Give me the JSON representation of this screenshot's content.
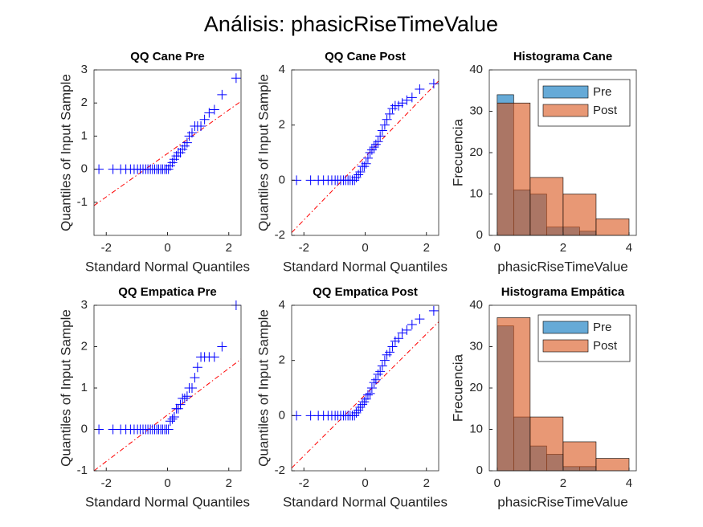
{
  "title": "Análisis: phasicRiseTimeValue",
  "chart_data": [
    {
      "type": "scatter",
      "title": "QQ Cane Pre",
      "x_label": "Standard Normal Quantiles",
      "y_label": "Quantiles of Input Sample",
      "x": [
        -2.24,
        -1.78,
        -1.53,
        -1.36,
        -1.21,
        -1.09,
        -0.98,
        -0.89,
        -0.8,
        -0.71,
        -0.64,
        -0.56,
        -0.49,
        -0.42,
        -0.35,
        -0.29,
        -0.22,
        -0.16,
        -0.09,
        -0.03,
        0.03,
        0.09,
        0.16,
        0.22,
        0.29,
        0.35,
        0.42,
        0.49,
        0.56,
        0.64,
        0.71,
        0.8,
        0.89,
        0.98,
        1.09,
        1.21,
        1.36,
        1.53,
        1.78,
        2.24
      ],
      "values": [
        0,
        0,
        0,
        0,
        0,
        0,
        0,
        0,
        0,
        0,
        0,
        0,
        0,
        0,
        0,
        0,
        0,
        0,
        0,
        0,
        0,
        0.1,
        0.2,
        0.3,
        0.4,
        0.5,
        0.5,
        0.6,
        0.7,
        0.8,
        1.0,
        1.1,
        1.3,
        1.3,
        1.3,
        1.5,
        1.7,
        1.8,
        2.25,
        2.75
      ],
      "color": "#0000ff",
      "ref_line": {
        "x": [
          -2.4,
          2.4
        ],
        "y": [
          -1.1,
          2.05
        ],
        "color": "#ff0000"
      },
      "xlim": [
        -2.4,
        2.4
      ],
      "xticks": [
        -2,
        0,
        2
      ],
      "ylim": [
        -2,
        3
      ],
      "yticks": [
        -1,
        0,
        1,
        2,
        3
      ]
    },
    {
      "type": "scatter",
      "title": "QQ Cane Post",
      "x_label": "Standard Normal Quantiles",
      "y_label": "Quantiles of Input Sample",
      "x": [
        -2.24,
        -1.78,
        -1.53,
        -1.36,
        -1.21,
        -1.09,
        -0.98,
        -0.89,
        -0.8,
        -0.71,
        -0.64,
        -0.56,
        -0.49,
        -0.42,
        -0.35,
        -0.29,
        -0.22,
        -0.16,
        -0.09,
        -0.03,
        0.03,
        0.09,
        0.16,
        0.22,
        0.29,
        0.35,
        0.42,
        0.49,
        0.56,
        0.64,
        0.71,
        0.8,
        0.89,
        0.98,
        1.09,
        1.21,
        1.36,
        1.53,
        1.78,
        2.24
      ],
      "values": [
        0,
        0,
        0,
        0,
        0,
        0,
        0,
        0,
        0,
        0,
        0,
        0,
        0,
        0,
        0,
        0.1,
        0.2,
        0.3,
        0.5,
        0.5,
        0.6,
        0.8,
        1.0,
        1.1,
        1.2,
        1.3,
        1.4,
        1.6,
        1.8,
        2.0,
        2.2,
        2.4,
        2.6,
        2.7,
        2.7,
        2.8,
        2.9,
        3.0,
        3.3,
        3.5
      ],
      "color": "#0000ff",
      "ref_line": {
        "x": [
          -2.4,
          2.4
        ],
        "y": [
          -1.9,
          3.6
        ],
        "color": "#ff0000"
      },
      "xlim": [
        -2.4,
        2.4
      ],
      "xticks": [
        -2,
        0,
        2
      ],
      "ylim": [
        -2,
        4
      ],
      "yticks": [
        -2,
        0,
        2,
        4
      ]
    },
    {
      "type": "histogram",
      "title": "Histograma Cane",
      "x_label": "phasicRiseTimeValue",
      "y_label": "Frecuencia",
      "series": [
        {
          "name": "Pre",
          "color": "#0072bd",
          "bins": [
            0,
            0.5,
            1,
            1.5,
            2,
            2.5,
            3
          ],
          "values": [
            34,
            11,
            10,
            2,
            2,
            1
          ]
        },
        {
          "name": "Post",
          "color": "#d95319",
          "bins": [
            0,
            1,
            2,
            3,
            4
          ],
          "values": [
            32,
            14,
            10,
            4
          ]
        }
      ],
      "face_alpha": 0.6,
      "legend": "northeast",
      "xlim": [
        -0.24,
        4.22
      ],
      "xticks": [
        0,
        2,
        4
      ],
      "ylim": [
        0,
        40
      ],
      "yticks": [
        0,
        10,
        20,
        30,
        40
      ]
    },
    {
      "type": "scatter",
      "title": "QQ Empatica Pre",
      "x_label": "Standard Normal Quantiles",
      "y_label": "Quantiles of Input Sample",
      "x": [
        -2.24,
        -1.78,
        -1.53,
        -1.36,
        -1.21,
        -1.09,
        -0.98,
        -0.89,
        -0.8,
        -0.71,
        -0.64,
        -0.56,
        -0.49,
        -0.42,
        -0.35,
        -0.29,
        -0.22,
        -0.16,
        -0.09,
        -0.03,
        0.03,
        0.09,
        0.16,
        0.22,
        0.29,
        0.35,
        0.42,
        0.49,
        0.56,
        0.64,
        0.71,
        0.8,
        0.89,
        0.98,
        1.09,
        1.21,
        1.36,
        1.53,
        1.78,
        2.24
      ],
      "values": [
        0,
        0,
        0,
        0,
        0,
        0,
        0,
        0,
        0,
        0,
        0,
        0,
        0,
        0,
        0,
        0,
        0,
        0,
        0,
        0,
        0,
        0.2,
        0.25,
        0.3,
        0.5,
        0.5,
        0.6,
        0.75,
        0.75,
        0.8,
        1.0,
        1.0,
        1.25,
        1.5,
        1.75,
        1.75,
        1.75,
        1.75,
        2.0,
        3.0
      ],
      "color": "#0000ff",
      "ref_line": {
        "x": [
          -2.4,
          2.4
        ],
        "y": [
          -1.0,
          1.7
        ],
        "color": "#ff0000"
      },
      "xlim": [
        -2.4,
        2.4
      ],
      "xticks": [
        -2,
        0,
        2
      ],
      "ylim": [
        -1,
        3
      ],
      "yticks": [
        -1,
        0,
        1,
        2,
        3
      ]
    },
    {
      "type": "scatter",
      "title": "QQ Empatica Post",
      "x_label": "Standard Normal Quantiles",
      "y_label": "Quantiles of Input Sample",
      "x": [
        -2.24,
        -1.78,
        -1.53,
        -1.36,
        -1.21,
        -1.09,
        -0.98,
        -0.89,
        -0.8,
        -0.71,
        -0.64,
        -0.56,
        -0.49,
        -0.42,
        -0.35,
        -0.29,
        -0.22,
        -0.16,
        -0.09,
        -0.03,
        0.03,
        0.09,
        0.16,
        0.22,
        0.29,
        0.35,
        0.42,
        0.49,
        0.56,
        0.64,
        0.71,
        0.8,
        0.89,
        0.98,
        1.09,
        1.21,
        1.36,
        1.53,
        1.78,
        2.24
      ],
      "values": [
        0,
        0,
        0,
        0,
        0,
        0,
        0,
        0,
        0,
        0,
        0,
        0,
        0,
        0,
        0,
        0.1,
        0.2,
        0.3,
        0.4,
        0.5,
        0.6,
        0.75,
        0.8,
        1.0,
        1.2,
        1.3,
        1.5,
        1.6,
        1.8,
        2.0,
        2.2,
        2.3,
        2.5,
        2.7,
        2.8,
        3.0,
        3.1,
        3.3,
        3.5,
        3.8
      ],
      "color": "#0000ff",
      "ref_line": {
        "x": [
          -2.4,
          2.4
        ],
        "y": [
          -1.9,
          3.4
        ],
        "color": "#ff0000"
      },
      "xlim": [
        -2.4,
        2.4
      ],
      "xticks": [
        -2,
        0,
        2
      ],
      "ylim": [
        -2,
        4
      ],
      "yticks": [
        -2,
        0,
        2,
        4
      ]
    },
    {
      "type": "histogram",
      "title": "Histograma Empática",
      "x_label": "phasicRiseTimeValue",
      "y_label": "Frecuencia",
      "series": [
        {
          "name": "Pre",
          "color": "#0072bd",
          "bins": [
            0,
            0.5,
            1,
            1.5,
            2,
            2.5,
            3
          ],
          "values": [
            35,
            13,
            6,
            4,
            1,
            1
          ]
        },
        {
          "name": "Post",
          "color": "#d95319",
          "bins": [
            0,
            1,
            2,
            3,
            4
          ],
          "values": [
            37,
            13,
            7,
            3
          ]
        }
      ],
      "face_alpha": 0.6,
      "legend": "northeast",
      "xlim": [
        -0.24,
        4.22
      ],
      "xticks": [
        0,
        2,
        4
      ],
      "ylim": [
        0,
        40
      ],
      "yticks": [
        0,
        10,
        20,
        30,
        40
      ]
    }
  ]
}
